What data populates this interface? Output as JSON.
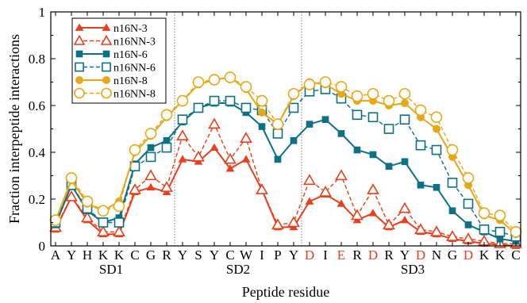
{
  "chart_data": {
    "type": "line",
    "title": "",
    "xlabel": "Peptide residue",
    "ylabel": "Fraction interpeptide interactions",
    "ylim": [
      0,
      1
    ],
    "yticks": [
      "0",
      "0.2",
      "0.4",
      "0.6",
      "0.8",
      "1"
    ],
    "categories": [
      "A",
      "Y",
      "H",
      "K",
      "K",
      "C",
      "G",
      "R",
      "Y",
      "S",
      "Y",
      "C",
      "W",
      "I",
      "P",
      "Y",
      "D",
      "I",
      "E",
      "R",
      "D",
      "R",
      "Y",
      "D",
      "N",
      "G",
      "D",
      "K",
      "K",
      "C"
    ],
    "highlight_indices": [
      16,
      18,
      20,
      23,
      26
    ],
    "highlight_color": "#e8401c",
    "regions": [
      {
        "label": "SD1",
        "start": 0,
        "end": 7
      },
      {
        "label": "SD2",
        "start": 8,
        "end": 15
      },
      {
        "label": "SD3",
        "start": 16,
        "end": 29
      }
    ],
    "legend_position": "top-left",
    "series": [
      {
        "name": "n16N-3",
        "color": "#e8401c",
        "marker": "triangle",
        "filled": true,
        "dashed": false,
        "values": [
          0.07,
          0.21,
          0.11,
          0.05,
          0.05,
          0.23,
          0.25,
          0.23,
          0.37,
          0.36,
          0.42,
          0.33,
          0.37,
          0.24,
          0.08,
          0.08,
          0.19,
          0.22,
          0.18,
          0.11,
          0.14,
          0.08,
          0.11,
          0.06,
          0.05,
          0.03,
          0.02,
          0.01,
          0.005,
          0.0
        ]
      },
      {
        "name": "n16NN-3",
        "color": "#e8401c",
        "marker": "triangle",
        "filled": false,
        "dashed": true,
        "values": [
          0.08,
          0.21,
          0.12,
          0.06,
          0.06,
          0.24,
          0.3,
          0.25,
          0.47,
          0.38,
          0.52,
          0.37,
          0.46,
          0.24,
          0.09,
          0.1,
          0.28,
          0.23,
          0.3,
          0.13,
          0.24,
          0.09,
          0.16,
          0.07,
          0.06,
          0.04,
          0.03,
          0.02,
          0.01,
          0.01
        ]
      },
      {
        "name": "n16N-6",
        "color": "#0e7085",
        "marker": "square",
        "filled": true,
        "dashed": false,
        "values": [
          0.09,
          0.26,
          0.15,
          0.1,
          0.12,
          0.35,
          0.42,
          0.45,
          0.53,
          0.59,
          0.61,
          0.61,
          0.57,
          0.51,
          0.37,
          0.45,
          0.52,
          0.54,
          0.48,
          0.41,
          0.39,
          0.34,
          0.36,
          0.26,
          0.25,
          0.15,
          0.09,
          0.06,
          0.03,
          0.02
        ]
      },
      {
        "name": "n16NN-6",
        "color": "#0e7085",
        "marker": "square",
        "filled": false,
        "dashed": true,
        "values": [
          0.1,
          0.26,
          0.16,
          0.1,
          0.1,
          0.34,
          0.38,
          0.42,
          0.54,
          0.59,
          0.62,
          0.62,
          0.59,
          0.58,
          0.48,
          0.59,
          0.66,
          0.67,
          0.63,
          0.56,
          0.55,
          0.5,
          0.54,
          0.43,
          0.41,
          0.27,
          0.18,
          0.07,
          0.06,
          0.04
        ]
      },
      {
        "name": "n16N-8",
        "color": "#e6a817",
        "marker": "circle",
        "filled": true,
        "dashed": false,
        "values": [
          0.11,
          0.28,
          0.18,
          0.15,
          0.19,
          0.4,
          0.47,
          0.55,
          0.62,
          0.69,
          0.71,
          0.72,
          0.67,
          0.57,
          0.52,
          0.64,
          0.7,
          0.69,
          0.65,
          0.62,
          0.62,
          0.6,
          0.61,
          0.55,
          0.5,
          0.38,
          0.26,
          0.13,
          0.11,
          0.05
        ]
      },
      {
        "name": "n16NN-8",
        "color": "#e6a817",
        "marker": "circle",
        "filled": false,
        "dashed": true,
        "values": [
          0.11,
          0.29,
          0.19,
          0.15,
          0.17,
          0.41,
          0.48,
          0.56,
          0.62,
          0.7,
          0.71,
          0.72,
          0.68,
          0.62,
          0.52,
          0.65,
          0.69,
          0.7,
          0.68,
          0.64,
          0.65,
          0.62,
          0.65,
          0.58,
          0.55,
          0.41,
          0.29,
          0.14,
          0.13,
          0.06
        ]
      }
    ]
  }
}
